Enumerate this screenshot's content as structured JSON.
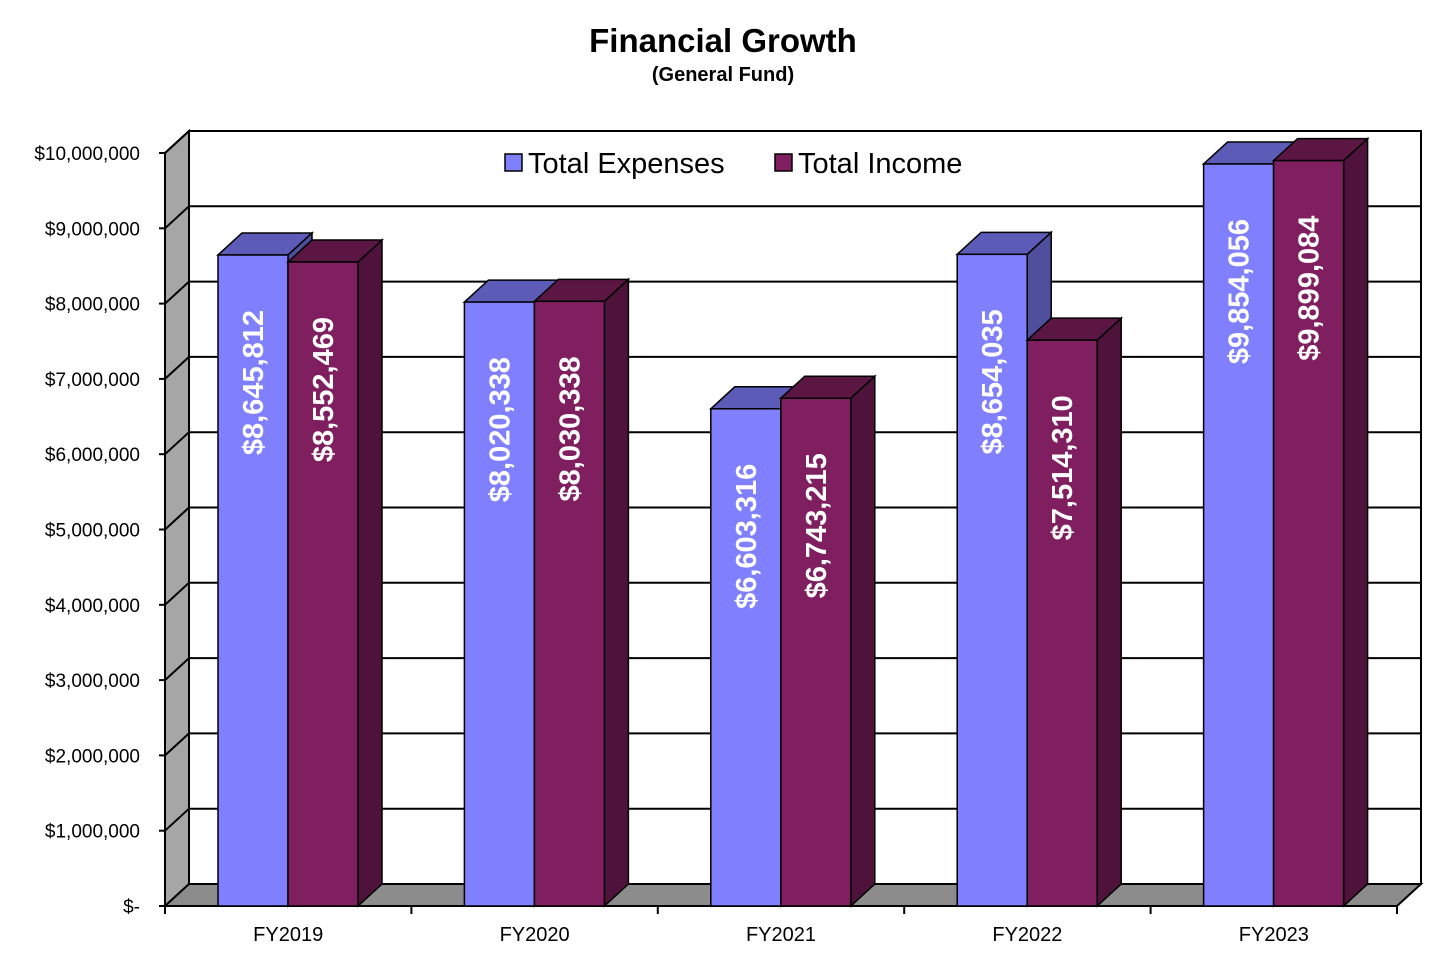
{
  "chart_data": {
    "type": "bar",
    "title": "Financial Growth",
    "subtitle": "(General Fund)",
    "categories": [
      "FY2019",
      "FY2020",
      "FY2021",
      "FY2022",
      "FY2023"
    ],
    "series": [
      {
        "name": "Total Expenses",
        "color": "#8080ff",
        "values": [
          8645812,
          8020338,
          6603316,
          8654035,
          9854056
        ],
        "labels": [
          "$8,645,812",
          "$8,020,338",
          "$6,603,316",
          "$8,654,035",
          "$9,854,056"
        ]
      },
      {
        "name": "Total Income",
        "color": "#7f1f5f",
        "values": [
          8552469,
          8030338,
          6743215,
          7514310,
          9899084
        ],
        "labels": [
          "$8,552,469",
          "$8,030,338",
          "$6,743,215",
          "$7,514,310",
          "$9,899,084"
        ]
      }
    ],
    "yticks": [
      "$-",
      "$1,000,000",
      "$2,000,000",
      "$3,000,000",
      "$4,000,000",
      "$5,000,000",
      "$6,000,000",
      "$7,000,000",
      "$8,000,000",
      "$9,000,000",
      "$10,000,000"
    ],
    "ylim": [
      0,
      10000000
    ],
    "grid": true,
    "legend_position": "top-center"
  }
}
